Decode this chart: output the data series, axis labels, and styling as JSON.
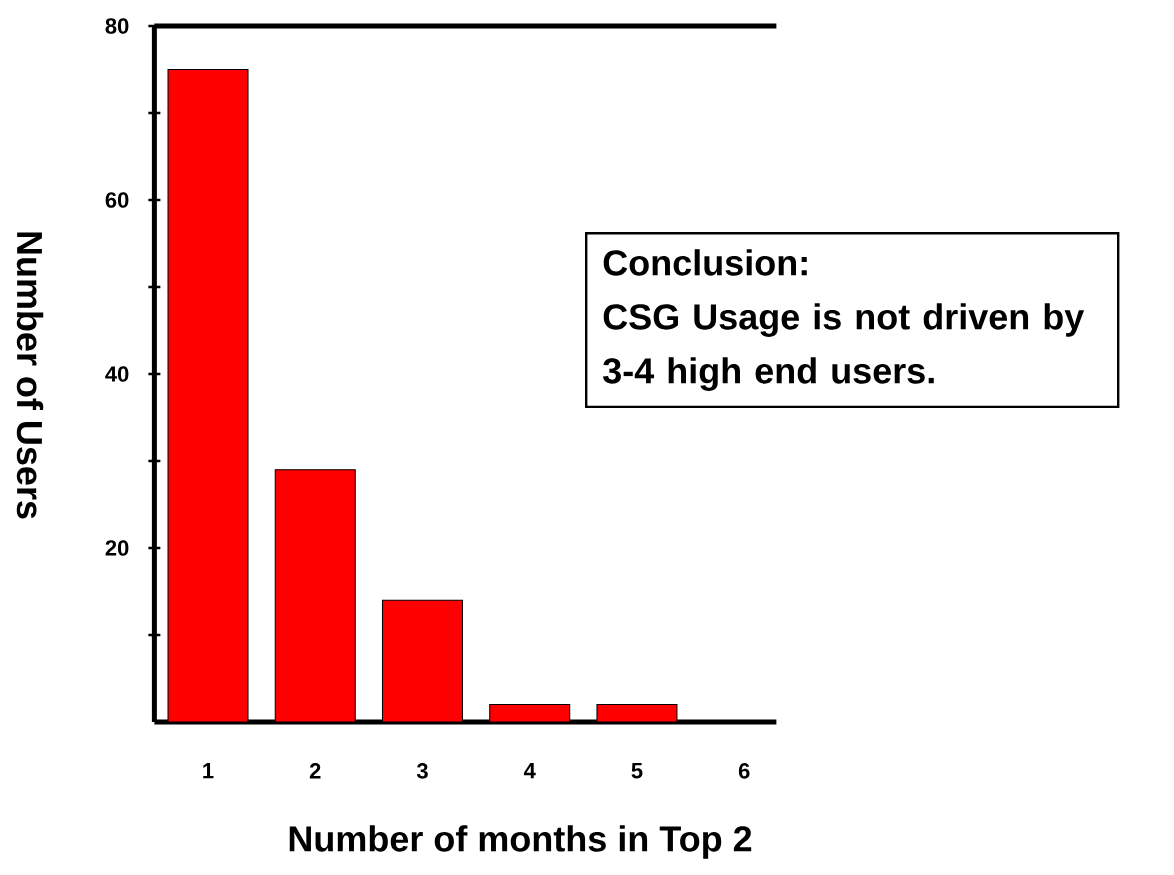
{
  "chart_data": {
    "type": "bar",
    "xlabel": "Number of months in Top 2",
    "ylabel": "Number of Users",
    "categories": [
      "1",
      "2",
      "3",
      "4",
      "5",
      "6"
    ],
    "values": [
      75,
      29,
      14,
      2,
      2,
      null
    ],
    "color": "#ff0000",
    "ylim": [
      0,
      80
    ],
    "yticks": [
      {
        "value": 10,
        "label": null
      },
      20,
      {
        "value": 30,
        "label": null
      },
      40,
      {
        "value": 50,
        "label": null
      },
      60,
      {
        "value": 70,
        "label": null
      },
      80
    ],
    "annotations": [
      "Conclusion:",
      "CSG Usage is not driven by 3-4 high end users."
    ],
    "grid": false
  }
}
